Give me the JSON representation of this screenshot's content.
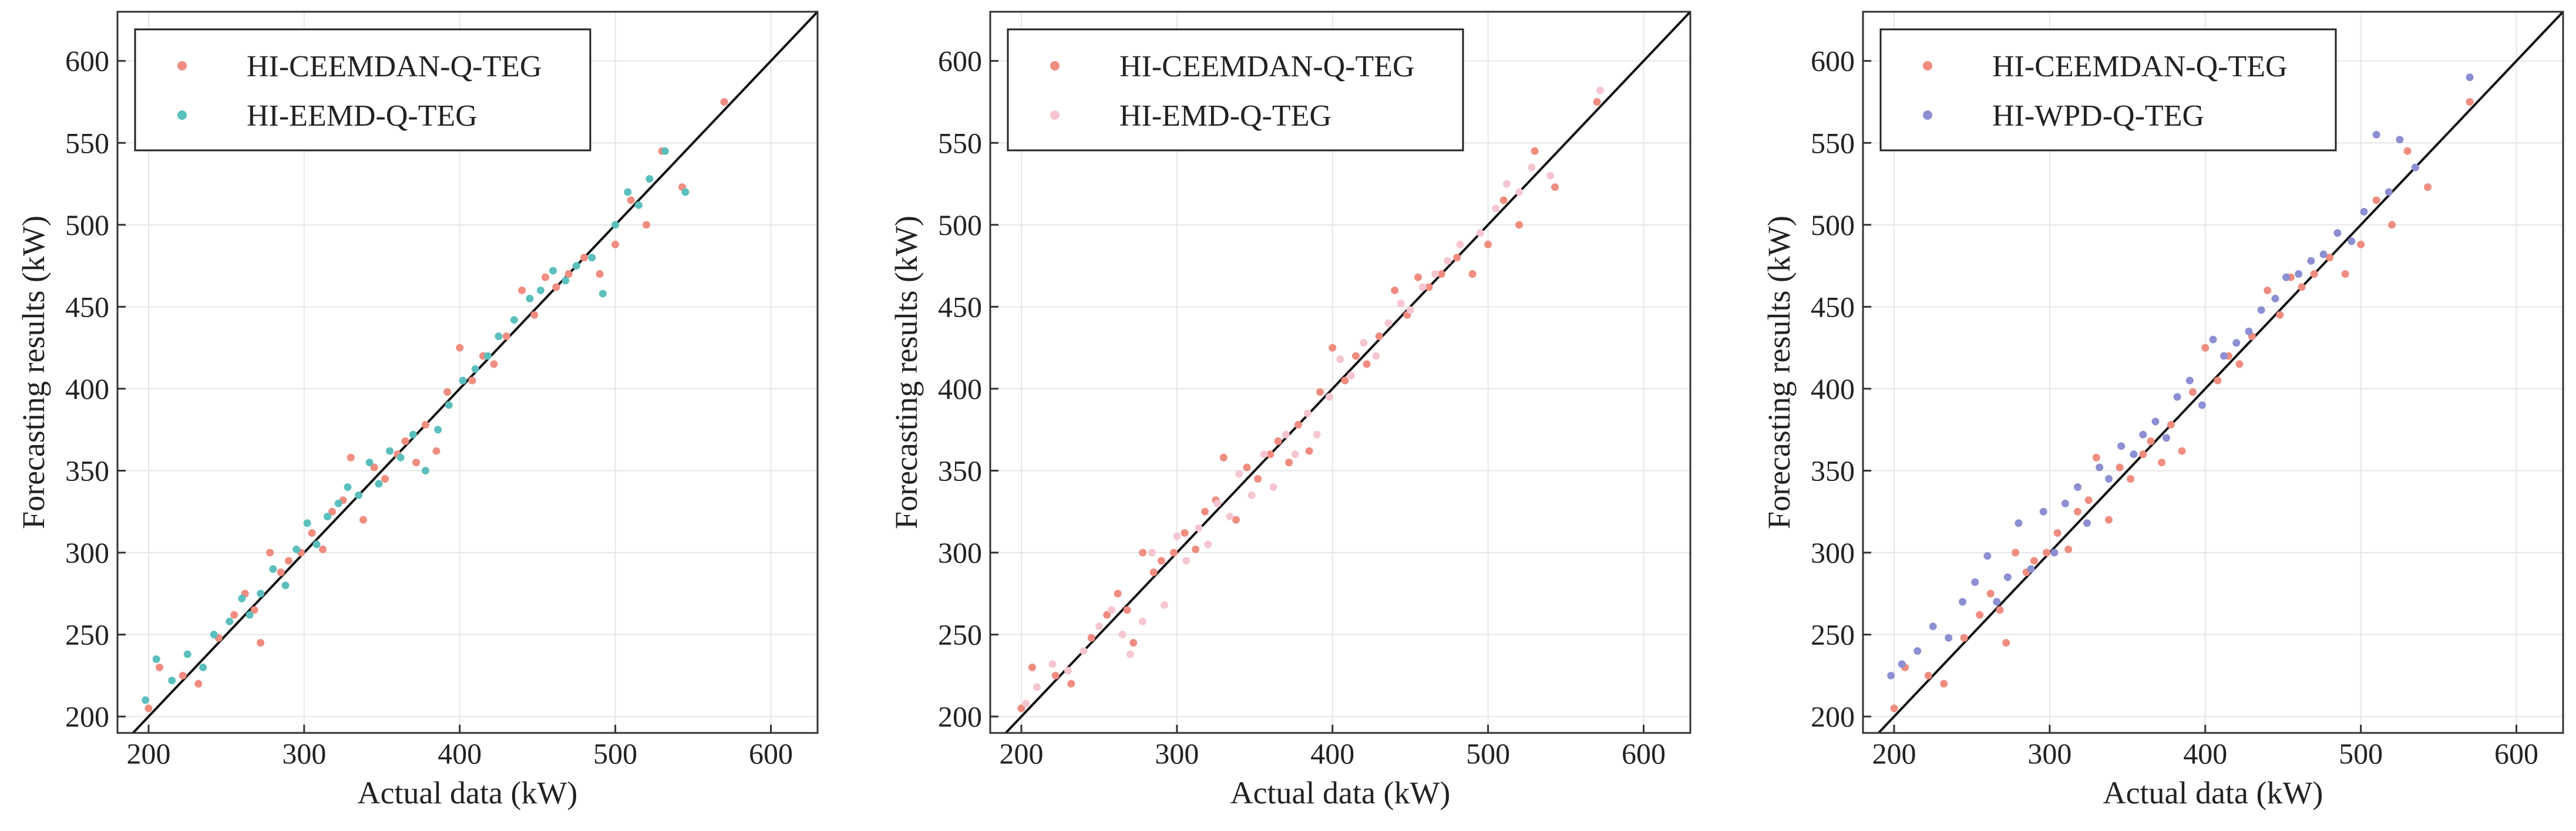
{
  "chart_data": [
    {
      "type": "scatter",
      "xlabel": "Actual data (kW)",
      "ylabel": "Forecasting results (kW)",
      "xlim": [
        180,
        630
      ],
      "ylim": [
        190,
        630
      ],
      "xticks": [
        200,
        300,
        400,
        500,
        600
      ],
      "yticks": [
        200,
        250,
        300,
        350,
        400,
        450,
        500,
        550,
        600
      ],
      "grid": true,
      "reference_line": "y = x",
      "legend_position": "top-left",
      "series": [
        {
          "name": "HI-CEEMDAN-Q-TEG",
          "color": "#f08c80",
          "x": [
            200,
            207,
            222,
            232,
            245,
            255,
            262,
            268,
            272,
            278,
            285,
            290,
            298,
            305,
            312,
            318,
            325,
            330,
            338,
            345,
            352,
            360,
            365,
            372,
            378,
            385,
            392,
            400,
            408,
            415,
            422,
            430,
            440,
            448,
            455,
            462,
            470,
            480,
            490,
            500,
            510,
            520,
            530,
            543,
            570
          ],
          "y": [
            205,
            230,
            225,
            220,
            248,
            262,
            275,
            265,
            245,
            300,
            288,
            295,
            300,
            312,
            302,
            325,
            332,
            358,
            320,
            352,
            345,
            360,
            368,
            355,
            378,
            362,
            398,
            425,
            405,
            420,
            415,
            432,
            460,
            445,
            468,
            462,
            470,
            480,
            470,
            488,
            515,
            500,
            545,
            523,
            575
          ]
        },
        {
          "name": "HI-EEMD-Q-TEG",
          "color": "#5bbfbd",
          "x": [
            198,
            205,
            215,
            225,
            235,
            242,
            252,
            260,
            265,
            272,
            280,
            288,
            295,
            302,
            308,
            315,
            322,
            328,
            335,
            342,
            348,
            355,
            362,
            370,
            378,
            386,
            393,
            402,
            410,
            418,
            425,
            435,
            445,
            452,
            460,
            468,
            475,
            485,
            492,
            500,
            508,
            515,
            522,
            532,
            545
          ],
          "y": [
            210,
            235,
            222,
            238,
            230,
            250,
            258,
            272,
            262,
            275,
            290,
            280,
            302,
            318,
            305,
            322,
            330,
            340,
            335,
            355,
            342,
            362,
            358,
            372,
            350,
            375,
            390,
            405,
            412,
            420,
            432,
            442,
            455,
            460,
            472,
            466,
            475,
            480,
            458,
            500,
            520,
            512,
            528,
            545,
            520
          ]
        }
      ]
    },
    {
      "type": "scatter",
      "xlabel": "Actual data (kW)",
      "ylabel": "Forecasting results (kW)",
      "xlim": [
        180,
        630
      ],
      "ylim": [
        190,
        630
      ],
      "xticks": [
        200,
        300,
        400,
        500,
        600
      ],
      "yticks": [
        200,
        250,
        300,
        350,
        400,
        450,
        500,
        550,
        600
      ],
      "grid": true,
      "reference_line": "y = x",
      "legend_position": "top-left",
      "series": [
        {
          "name": "HI-CEEMDAN-Q-TEG",
          "color": "#f08c80",
          "x": [
            200,
            207,
            222,
            232,
            245,
            255,
            262,
            268,
            272,
            278,
            285,
            290,
            298,
            305,
            312,
            318,
            325,
            330,
            338,
            345,
            352,
            360,
            365,
            372,
            378,
            385,
            392,
            400,
            408,
            415,
            422,
            430,
            440,
            448,
            455,
            462,
            470,
            480,
            490,
            500,
            510,
            520,
            530,
            543,
            570
          ],
          "y": [
            205,
            230,
            225,
            220,
            248,
            262,
            275,
            265,
            245,
            300,
            288,
            295,
            300,
            312,
            302,
            325,
            332,
            358,
            320,
            352,
            345,
            360,
            368,
            355,
            378,
            362,
            398,
            425,
            405,
            420,
            415,
            432,
            460,
            445,
            468,
            462,
            470,
            480,
            470,
            488,
            515,
            500,
            545,
            523,
            575
          ]
        },
        {
          "name": "HI-EMD-Q-TEG",
          "color": "#f6c6d0",
          "x": [
            203,
            210,
            220,
            230,
            240,
            250,
            258,
            265,
            270,
            278,
            284,
            292,
            300,
            306,
            314,
            320,
            326,
            334,
            340,
            348,
            356,
            362,
            370,
            376,
            384,
            390,
            398,
            405,
            412,
            420,
            428,
            436,
            444,
            450,
            458,
            466,
            474,
            482,
            495,
            505,
            512,
            520,
            528,
            540,
            572
          ],
          "y": [
            208,
            218,
            232,
            228,
            240,
            255,
            265,
            250,
            238,
            258,
            300,
            268,
            310,
            295,
            315,
            305,
            330,
            322,
            348,
            335,
            360,
            340,
            372,
            360,
            385,
            372,
            395,
            418,
            408,
            428,
            420,
            440,
            452,
            448,
            462,
            470,
            478,
            488,
            495,
            510,
            525,
            520,
            535,
            530,
            582
          ]
        }
      ]
    },
    {
      "type": "scatter",
      "xlabel": "Actual data (kW)",
      "ylabel": "Forecasting results (kW)",
      "xlim": [
        180,
        630
      ],
      "ylim": [
        190,
        630
      ],
      "xticks": [
        200,
        300,
        400,
        500,
        600
      ],
      "yticks": [
        200,
        250,
        300,
        350,
        400,
        450,
        500,
        550,
        600
      ],
      "grid": true,
      "reference_line": "y = x",
      "legend_position": "top-left",
      "series": [
        {
          "name": "HI-CEEMDAN-Q-TEG",
          "color": "#f08c80",
          "x": [
            200,
            207,
            222,
            232,
            245,
            255,
            262,
            268,
            272,
            278,
            285,
            290,
            298,
            305,
            312,
            318,
            325,
            330,
            338,
            345,
            352,
            360,
            365,
            372,
            378,
            385,
            392,
            400,
            408,
            415,
            422,
            430,
            440,
            448,
            455,
            462,
            470,
            480,
            490,
            500,
            510,
            520,
            530,
            543,
            570
          ],
          "y": [
            205,
            230,
            225,
            220,
            248,
            262,
            275,
            265,
            245,
            300,
            288,
            295,
            300,
            312,
            302,
            325,
            332,
            358,
            320,
            352,
            345,
            360,
            368,
            355,
            378,
            362,
            398,
            425,
            405,
            420,
            415,
            432,
            460,
            445,
            468,
            462,
            470,
            480,
            470,
            488,
            515,
            500,
            545,
            523,
            575
          ]
        },
        {
          "name": "HI-WPD-Q-TEG",
          "color": "#8c8fd1",
          "x": [
            198,
            205,
            215,
            225,
            235,
            244,
            252,
            260,
            266,
            273,
            280,
            288,
            296,
            303,
            310,
            318,
            324,
            332,
            338,
            346,
            354,
            360,
            368,
            375,
            382,
            390,
            398,
            405,
            412,
            420,
            428,
            436,
            445,
            452,
            460,
            468,
            476,
            485,
            494,
            502,
            510,
            518,
            525,
            535,
            570
          ],
          "y": [
            225,
            232,
            240,
            255,
            248,
            270,
            282,
            298,
            270,
            285,
            318,
            290,
            325,
            300,
            330,
            340,
            318,
            352,
            345,
            365,
            360,
            372,
            380,
            370,
            395,
            405,
            390,
            430,
            420,
            428,
            435,
            448,
            455,
            468,
            470,
            478,
            482,
            495,
            490,
            508,
            555,
            520,
            552,
            535,
            590
          ]
        }
      ]
    }
  ]
}
